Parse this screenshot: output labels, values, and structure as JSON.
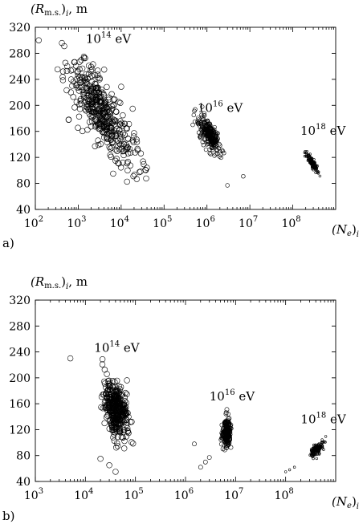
{
  "figure": {
    "panels": [
      "a)",
      "b)"
    ]
  },
  "chart_data": [
    {
      "type": "scatter",
      "panel_label": "a)",
      "ylabel_main": "(R",
      "ylabel_sub": "m.s.",
      "ylabel_tail": ")",
      "ylabel_index": "i",
      "ylabel_unit": ",  m",
      "xlabel_main": "(N",
      "xlabel_sub": "e",
      "xlabel_tail": ")",
      "xlabel_index": "i",
      "xscale": "log",
      "xlim": [
        100,
        1000000000
      ],
      "ylim": [
        40,
        320
      ],
      "y_ticks": [
        40,
        80,
        120,
        160,
        200,
        240,
        280,
        320
      ],
      "x_ticks": [
        {
          "base": "10",
          "exp": "2",
          "value": 100
        },
        {
          "base": "10",
          "exp": "3",
          "value": 1000
        },
        {
          "base": "10",
          "exp": "4",
          "value": 10000
        },
        {
          "base": "10",
          "exp": "5",
          "value": 100000
        },
        {
          "base": "10",
          "exp": "6",
          "value": 1000000
        },
        {
          "base": "10",
          "exp": "7",
          "value": 10000000
        },
        {
          "base": "10",
          "exp": "8",
          "value": 100000000
        }
      ],
      "grid": false,
      "marker": "open-circle",
      "series": [
        {
          "name": "10^14 eV",
          "label_base": "10",
          "label_exp": "14",
          "label_unit": " eV",
          "label_at": [
            1500,
            296
          ],
          "log_center": 3.55,
          "y_center": 190,
          "log_spread": 0.7,
          "y_spread": 55,
          "slope": -75,
          "count": 420,
          "marker_size": 3.4,
          "outliers": [
            [
              120,
              300
            ],
            [
              600,
              178
            ],
            [
              6500,
              95
            ],
            [
              40000,
              104
            ]
          ]
        },
        {
          "name": "10^16 eV",
          "label_base": "10",
          "label_exp": "16",
          "label_unit": " eV",
          "label_at": [
            600000,
            190
          ],
          "log_center": 6.05,
          "y_center": 155,
          "log_spread": 0.22,
          "y_spread": 22,
          "slope": -80,
          "count": 260,
          "marker_size": 2.4,
          "outliers": [
            [
              3000000,
              77
            ],
            [
              7000000,
              91
            ]
          ]
        },
        {
          "name": "10^18 eV",
          "label_base": "10",
          "label_exp": "18",
          "label_unit": " eV",
          "label_at": [
            150000000,
            155
          ],
          "log_center": 8.45,
          "y_center": 112,
          "log_spread": 0.12,
          "y_spread": 8,
          "slope": -95,
          "count": 150,
          "marker_size": 1.4,
          "outliers": []
        }
      ]
    },
    {
      "type": "scatter",
      "panel_label": "b)",
      "ylabel_main": "(R",
      "ylabel_sub": "m.s.",
      "ylabel_tail": ")",
      "ylabel_index": "i",
      "ylabel_unit": ",  m",
      "xlabel_main": "(N",
      "xlabel_sub": "e",
      "xlabel_tail": ")",
      "xlabel_index": "i",
      "xscale": "log",
      "xlim": [
        1000,
        1000000000
      ],
      "ylim": [
        40,
        320
      ],
      "y_ticks": [
        40,
        80,
        120,
        160,
        200,
        240,
        280,
        320
      ],
      "x_ticks": [
        {
          "base": "10",
          "exp": "3",
          "value": 1000
        },
        {
          "base": "10",
          "exp": "4",
          "value": 10000
        },
        {
          "base": "10",
          "exp": "5",
          "value": 100000
        },
        {
          "base": "10",
          "exp": "6",
          "value": 1000000
        },
        {
          "base": "10",
          "exp": "7",
          "value": 10000000
        },
        {
          "base": "10",
          "exp": "8",
          "value": 100000000
        }
      ],
      "grid": false,
      "marker": "open-circle",
      "series": [
        {
          "name": "10^14 eV",
          "label_base": "10",
          "label_exp": "14",
          "label_unit": " eV",
          "label_at": [
            15000,
            240
          ],
          "log_center": 4.62,
          "y_center": 150,
          "log_spread": 0.22,
          "y_spread": 45,
          "slope": -60,
          "count": 380,
          "marker_size": 3.4,
          "outliers": [
            [
              5000,
              230
            ],
            [
              20000,
              75
            ],
            [
              30000,
              65
            ],
            [
              40000,
              55
            ]
          ]
        },
        {
          "name": "10^16 eV",
          "label_base": "10",
          "label_exp": "16",
          "label_unit": " eV",
          "label_at": [
            3000000,
            165
          ],
          "log_center": 6.82,
          "y_center": 115,
          "log_spread": 0.07,
          "y_spread": 24,
          "slope": 0,
          "count": 230,
          "marker_size": 2.6,
          "outliers": [
            [
              1500000,
              98
            ],
            [
              2000000,
              62
            ],
            [
              2500000,
              70
            ],
            [
              3000000,
              77
            ]
          ]
        },
        {
          "name": "10^18 eV",
          "label_base": "10",
          "label_exp": "18",
          "label_unit": " eV",
          "label_at": [
            200000000,
            130
          ],
          "log_center": 8.62,
          "y_center": 90,
          "log_spread": 0.12,
          "y_spread": 10,
          "slope": 55,
          "count": 150,
          "marker_size": 1.4,
          "outliers": [
            [
              100000000,
              55
            ],
            [
              120000000,
              58
            ],
            [
              150000000,
              62
            ]
          ]
        }
      ]
    }
  ]
}
